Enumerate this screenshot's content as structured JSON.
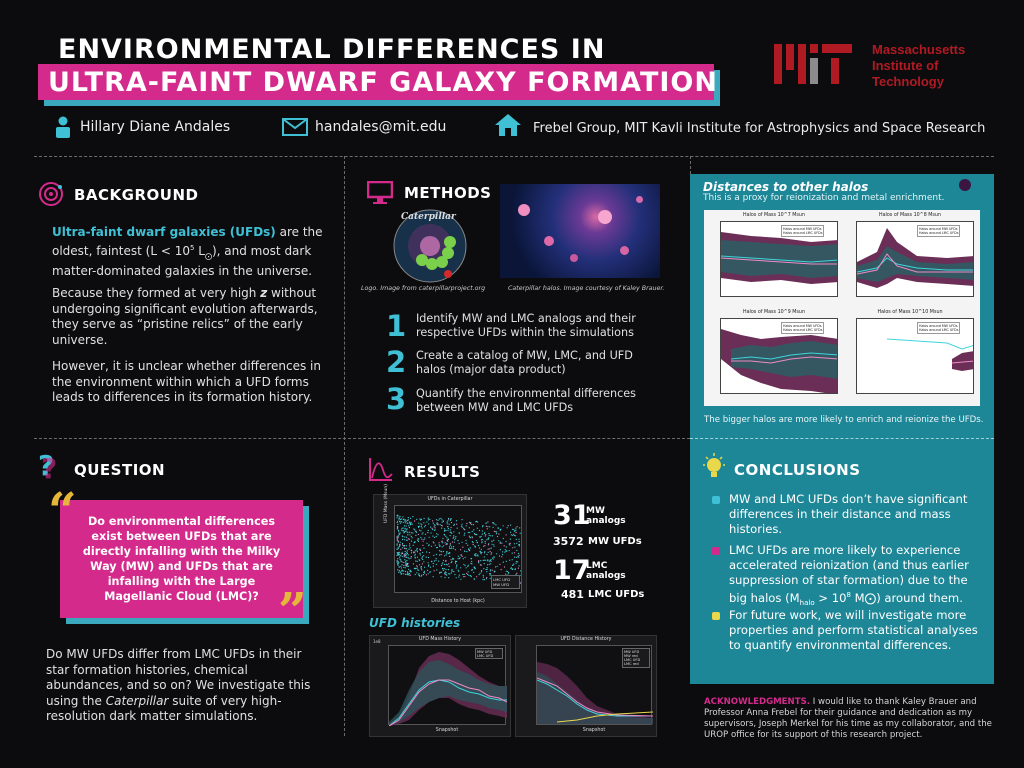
{
  "header": {
    "title_line1": "ENVIRONMENTAL DIFFERENCES IN",
    "title_line2": "ULTRA-FAINT DWARF GALAXY FORMATION",
    "institution": "Massachusetts Institute of Technology",
    "inst_line1": "Massachusetts",
    "inst_line2": "Institute of",
    "inst_line3": "Technology",
    "author": "Hillary Diane Andales",
    "email": "handales@mit.edu",
    "group": "Frebel Group, MIT Kavli Institute for Astrophysics and Space Research"
  },
  "colors": {
    "accent_pink": "#d42a8c",
    "accent_cyan": "#3fc0d4",
    "panel_teal": "#1e8797",
    "mit_red": "#b01a23",
    "quote_gold": "#e6b63a"
  },
  "background": {
    "title": "BACKGROUND",
    "p1_bold": "Ultra-faint dwarf galaxies (UFDs)",
    "p1_rest": " are the oldest, faintest (L < 10",
    "p1_sup": "5",
    "p1_unit": " L",
    "p1_sub": "⨀",
    "p1_end": "), and most dark matter-dominated galaxies in the universe.",
    "p2_a": "Because they formed at very high ",
    "p2_z": "z",
    "p2_b": " without undergoing significant evolution afterwards, they serve as “pristine relics” of the early universe.",
    "p3": "However, it is unclear whether differences in the environment within which a UFD forms leads to differences in its formation history."
  },
  "question": {
    "title": "QUESTION",
    "box": "Do environmental differences exist between UFDs that are directly infalling with the Milky Way (MW) and UFDs that are infalling with the Large Magellanic Cloud (LMC)?",
    "open_quote": "“",
    "close_quote": "”",
    "p_a": "Do MW UFDs differ from LMC UFDs in their star formation histories, chemical abundances, and so on? We investigate this using the ",
    "p_em": "Caterpillar",
    "p_b": " suite of very high-resolution dark matter simulations."
  },
  "methods": {
    "title": "METHODS",
    "logo_word": "Caterpillar",
    "caption_logo": "Logo. Image from caterpillarproject.org",
    "caption_halos": "Caterpillar halos. Image courtesy of Kaley Brauer.",
    "steps": [
      {
        "num": "1",
        "text": "Identify MW and LMC analogs and their respective UFDs within the simulations"
      },
      {
        "num": "2",
        "text": "Create a catalog of MW, LMC, and UFD halos (major data product)"
      },
      {
        "num": "3",
        "text": "Quantify the environmental differences between MW and LMC UFDs"
      }
    ]
  },
  "results": {
    "title": "RESULTS",
    "scatter_title": "UFDs in Caterpillar",
    "scatter_xlabel": "Distance to Host (kpc)",
    "scatter_ylabel": "UFD Mass (Msun)",
    "scatter_legend": [
      "LMC UFD",
      "MW UFD"
    ],
    "mw_analogs": "31",
    "mw_analogs_label1": "MW",
    "mw_analogs_label2": "analogs",
    "mw_ufds": "3572",
    "mw_ufds_label": "MW UFDs",
    "lmc_analogs": "17",
    "lmc_analogs_label1": "LMC",
    "lmc_analogs_label2": "analogs",
    "lmc_ufds": "481",
    "lmc_ufds_label": "LMC UFDs",
    "histories_title": "UFD histories",
    "mass_history": {
      "title": "UFD Mass History",
      "xlabel": "Snapshot",
      "ylabel": "UFD Mass (Msun)",
      "legend": [
        "MW UFD",
        "LMC UFD"
      ],
      "y_mult": "1e8"
    },
    "distance_history": {
      "title": "UFD Distance History",
      "xlabel": "Snapshot",
      "ylabel": "Distance to Host (kpc)",
      "legend": [
        "MW UFD",
        "MW red",
        "LMC UFD",
        "LMC red"
      ]
    }
  },
  "distances": {
    "title": "Distances to other halos",
    "subtitle": "This is a proxy for reionization and metal enrichment.",
    "panels": [
      {
        "title": "Halos of Mass 10^7 Msun",
        "legend": [
          "Halos around MW UFDs",
          "Halos around LMC UFDs"
        ]
      },
      {
        "title": "Halos of Mass 10^8 Msun",
        "legend": [
          "Halos around MW UFDs",
          "Halos around LMC UFDs"
        ]
      },
      {
        "title": "Halos of Mass 10^9 Msun",
        "legend": [
          "Halos around MW UFDs",
          "Halos around LMC UFDs"
        ]
      },
      {
        "title": "Halos of Mass 10^10 Msun",
        "legend": [
          "Halos around MW UFDs",
          "Halos around LMC UFDs"
        ]
      }
    ],
    "footer": "The bigger halos are more likely to enrich and reionize the UFDs."
  },
  "conclusions": {
    "title": "CONCLUSIONS",
    "items": [
      {
        "text": "MW and LMC UFDs don’t have significant differences in their distance and mass histories.",
        "color": "#3fc0d4"
      },
      {
        "text": "LMC UFDs are more likely to experience accelerated reionization (and thus earlier suppression of star formation) due to the big halos (M",
        "sub": "halo",
        "text2": " > 10",
        "sup": "8",
        "text3": " M⨀) around them.",
        "color": "#d42a8c"
      },
      {
        "text": "For future work, we will investigate more properties and perform statistical analyses to quantify environmental differences.",
        "color": "#e8d84a"
      }
    ]
  },
  "acknowledgments": {
    "label": "ACKNOWLEDGMENTS.",
    "text": " I would like to thank Kaley Brauer and Professor Anna Frebel for their guidance and dedication as my supervisors, Joseph Merkel for his time as my collaborator, and the UROP office for its support of this research project."
  }
}
